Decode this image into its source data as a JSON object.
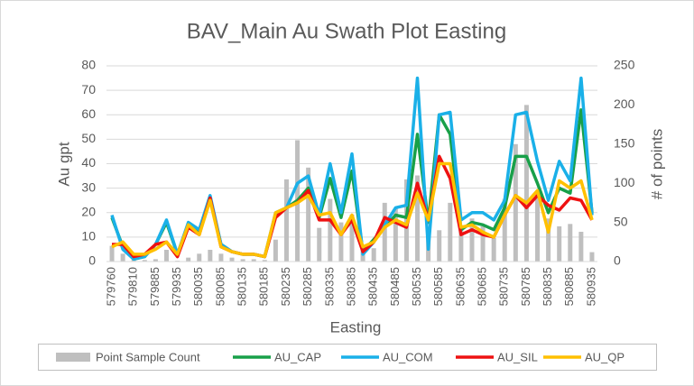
{
  "chart_data": {
    "type": "bar-line",
    "title": "BAV_Main Au Swath Plot Easting",
    "x_label": "Easting",
    "y_label": "Au gpt",
    "y2_label": "# of points",
    "categories": [
      "579760",
      null,
      "579810",
      null,
      "579885",
      null,
      "579935",
      null,
      "580035",
      null,
      "580085",
      null,
      "580135",
      null,
      "580185",
      null,
      "580235",
      null,
      "580285",
      null,
      "580335",
      null,
      "580385",
      null,
      "580435",
      null,
      "580485",
      null,
      "580535",
      null,
      "580585",
      null,
      "580635",
      null,
      "580685",
      null,
      "580735",
      null,
      "580785",
      null,
      "580835",
      null,
      "580885",
      null,
      "580935"
    ],
    "ylim": [
      0,
      80
    ],
    "yticks": [
      0,
      10,
      20,
      30,
      40,
      50,
      60,
      70,
      80
    ],
    "y2lim": [
      0,
      250
    ],
    "y2ticks": [
      0,
      50,
      100,
      150,
      200,
      250
    ],
    "grid": true,
    "legend": "bottom",
    "series": [
      {
        "name": "Point Sample Count",
        "type": "bar",
        "axis": "y2",
        "color": "#bfbfbf",
        "values": [
          20,
          10,
          3,
          2,
          3,
          15,
          1,
          5,
          10,
          15,
          10,
          5,
          3,
          3,
          2,
          28,
          105,
          155,
          120,
          43,
          80,
          50,
          60,
          15,
          17,
          75,
          68,
          105,
          110,
          40,
          40,
          75,
          45,
          55,
          45,
          30,
          80,
          150,
          200,
          85,
          55,
          45,
          48,
          38,
          12
        ]
      },
      {
        "name": "AU_CAP",
        "type": "line",
        "color": "#18a049",
        "values": [
          18,
          6,
          1,
          2,
          7,
          16,
          3,
          15,
          12,
          26,
          7,
          4,
          3,
          3,
          2,
          19,
          22,
          25,
          30,
          18,
          34,
          18,
          37,
          4,
          9,
          14,
          19,
          18,
          52,
          16,
          60,
          52,
          13,
          16,
          15,
          13,
          22,
          43,
          43,
          32,
          20,
          30,
          28,
          62,
          20
        ]
      },
      {
        "name": "AU_COM",
        "type": "line",
        "color": "#1ab0e8",
        "values": [
          19,
          5,
          1,
          2,
          7,
          17,
          3,
          16,
          13,
          27,
          7,
          4,
          3,
          3,
          2,
          20,
          22,
          32,
          35,
          19,
          40,
          20,
          44,
          3,
          8,
          15,
          22,
          23,
          75,
          5,
          60,
          61,
          17,
          20,
          20,
          17,
          25,
          60,
          61,
          41,
          25,
          41,
          33,
          75,
          19
        ]
      },
      {
        "name": "AU_SIL",
        "type": "line",
        "color": "#ee1111",
        "values": [
          7,
          7,
          2,
          3,
          7,
          8,
          2,
          14,
          11,
          26,
          6,
          4,
          3,
          3,
          2,
          18,
          22,
          24,
          29,
          17,
          17,
          11,
          17,
          4,
          8,
          18,
          16,
          14,
          32,
          17,
          43,
          34,
          11,
          13,
          11,
          10,
          19,
          27,
          22,
          27,
          23,
          21,
          26,
          25,
          17
        ]
      },
      {
        "name": "AU_QP",
        "type": "line",
        "color": "#ffc000",
        "values": [
          6,
          8,
          3,
          3,
          5,
          8,
          3,
          15,
          11,
          25,
          6,
          4,
          3,
          3,
          2,
          20,
          22,
          24,
          27,
          19,
          20,
          11,
          19,
          6,
          8,
          14,
          17,
          15,
          28,
          17,
          40,
          40,
          14,
          15,
          12,
          10,
          19,
          27,
          24,
          29,
          12,
          33,
          30,
          33,
          17
        ]
      }
    ]
  }
}
